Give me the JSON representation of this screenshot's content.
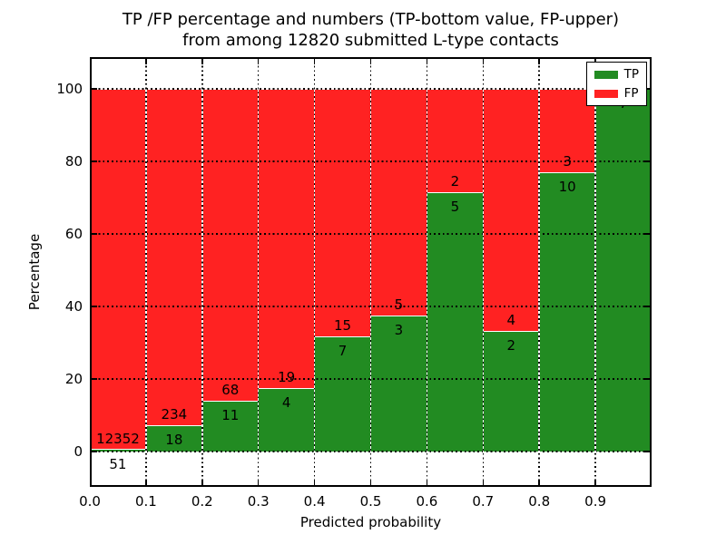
{
  "title": {
    "line1": "TP /FP percentage and numbers (TP-bottom value, FP-upper)",
    "line2": "from among 12820 submitted L-type contacts"
  },
  "axes": {
    "xlabel": "Predicted probability",
    "ylabel": "Percentage"
  },
  "legend": {
    "items": [
      {
        "label": "TP",
        "color": "#228b22"
      },
      {
        "label": "FP",
        "color": "#ff2222"
      }
    ],
    "position": "upper right"
  },
  "colors": {
    "tp": "#228b22",
    "fp": "#ff2222",
    "background": "#ffffff",
    "text": "#000000"
  },
  "chart_data": {
    "type": "bar",
    "stacked": true,
    "normalized_to_percent": true,
    "title": "TP /FP percentage and numbers (TP-bottom value, FP-upper) from among 12820 submitted L-type contacts",
    "xlabel": "Predicted probability",
    "ylabel": "Percentage",
    "total_submitted": 12820,
    "bin_width": 0.1,
    "x_bins": [
      0.0,
      0.1,
      0.2,
      0.3,
      0.4,
      0.5,
      0.6,
      0.7,
      0.8,
      0.9
    ],
    "series": [
      {
        "name": "TP",
        "color": "#228b22",
        "counts": [
          51,
          18,
          11,
          4,
          7,
          3,
          5,
          2,
          10,
          7
        ]
      },
      {
        "name": "FP",
        "color": "#ff2222",
        "counts": [
          12352,
          234,
          68,
          19,
          15,
          5,
          2,
          4,
          3,
          0
        ]
      }
    ],
    "x_tick_labels": [
      "0.0",
      "0.1",
      "0.2",
      "0.3",
      "0.4",
      "0.5",
      "0.6",
      "0.7",
      "0.8",
      "0.9"
    ],
    "y_tick_labels": [
      "0",
      "20",
      "40",
      "60",
      "80",
      "100"
    ],
    "xlim": [
      0.0,
      1.0
    ],
    "ylim": [
      -9.75,
      108.5
    ],
    "grid": true,
    "legend_position": "upper right"
  }
}
